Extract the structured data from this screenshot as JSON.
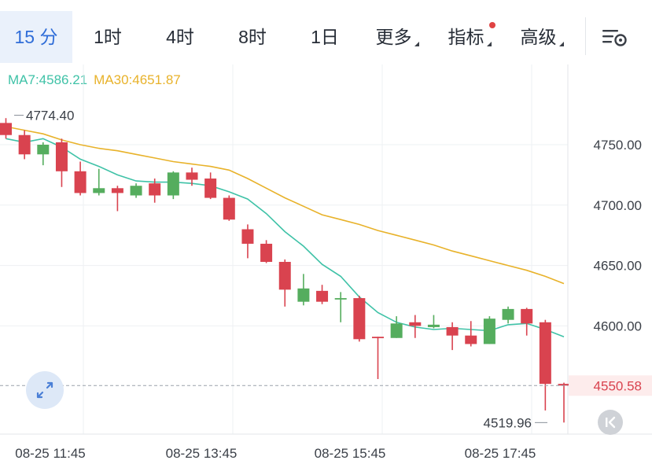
{
  "tabs": [
    {
      "label": "15 分",
      "active": true
    },
    {
      "label": "1时",
      "active": false
    },
    {
      "label": "4时",
      "active": false
    },
    {
      "label": "8时",
      "active": false
    },
    {
      "label": "1日",
      "active": false
    },
    {
      "label": "更多",
      "active": false,
      "dropdown": true
    },
    {
      "label": "指标",
      "active": false,
      "dropdown": true,
      "dot": true
    },
    {
      "label": "高级",
      "active": false,
      "dropdown": true
    }
  ],
  "legend": {
    "ma7": "MA7:4586.21",
    "ma30": "MA30:4651.87"
  },
  "colors": {
    "up": "#55ad5e",
    "down": "#d9434f",
    "ma7": "#3fc2a7",
    "ma30": "#e8b22a",
    "grid": "#eef0f3",
    "price_tag_bg": "#fdecec",
    "price_tag_text": "#d9434f"
  },
  "icons": {
    "settings": "chart-settings-icon",
    "expand": "expand-arrows-icon",
    "back": "skip-back-icon"
  },
  "chart_data": {
    "type": "candlestick",
    "x_ticks": [
      "08-25 11:45",
      "08-25 13:45",
      "08-25 15:45",
      "08-25 17:45"
    ],
    "y_ticks": [
      "4750.00",
      "4700.00",
      "4650.00",
      "4600.00"
    ],
    "ylim": [
      4510,
      4790
    ],
    "high_label": "4774.40",
    "low_label": "4519.96",
    "last_price": "4550.58",
    "last_price_value": 4550.58,
    "grid": true,
    "candles": [
      {
        "o": 4768,
        "h": 4772,
        "l": 4755,
        "c": 4758
      },
      {
        "o": 4758,
        "h": 4762,
        "l": 4738,
        "c": 4742
      },
      {
        "o": 4742,
        "h": 4752,
        "l": 4733,
        "c": 4750
      },
      {
        "o": 4752,
        "h": 4755,
        "l": 4715,
        "c": 4728
      },
      {
        "o": 4728,
        "h": 4736,
        "l": 4708,
        "c": 4710
      },
      {
        "o": 4710,
        "h": 4730,
        "l": 4708,
        "c": 4714
      },
      {
        "o": 4714,
        "h": 4716,
        "l": 4695,
        "c": 4710
      },
      {
        "o": 4708,
        "h": 4718,
        "l": 4706,
        "c": 4716
      },
      {
        "o": 4718,
        "h": 4722,
        "l": 4702,
        "c": 4708
      },
      {
        "o": 4708,
        "h": 4728,
        "l": 4705,
        "c": 4727
      },
      {
        "o": 4727,
        "h": 4731,
        "l": 4716,
        "c": 4721
      },
      {
        "o": 4722,
        "h": 4727,
        "l": 4705,
        "c": 4706
      },
      {
        "o": 4706,
        "h": 4708,
        "l": 4687,
        "c": 4688
      },
      {
        "o": 4680,
        "h": 4684,
        "l": 4656,
        "c": 4668
      },
      {
        "o": 4668,
        "h": 4671,
        "l": 4652,
        "c": 4653
      },
      {
        "o": 4653,
        "h": 4655,
        "l": 4616,
        "c": 4630
      },
      {
        "o": 4620,
        "h": 4643,
        "l": 4617,
        "c": 4631
      },
      {
        "o": 4629,
        "h": 4634,
        "l": 4618,
        "c": 4620
      },
      {
        "o": 4623,
        "h": 4628,
        "l": 4603,
        "c": 4623
      },
      {
        "o": 4623,
        "h": 4625,
        "l": 4587,
        "c": 4589
      },
      {
        "o": 4591,
        "h": 4591,
        "l": 4556,
        "c": 4590
      },
      {
        "o": 4590,
        "h": 4608,
        "l": 4590,
        "c": 4602
      },
      {
        "o": 4603,
        "h": 4609,
        "l": 4590,
        "c": 4600
      },
      {
        "o": 4599,
        "h": 4609,
        "l": 4598,
        "c": 4601
      },
      {
        "o": 4599,
        "h": 4603,
        "l": 4580,
        "c": 4592
      },
      {
        "o": 4592,
        "h": 4604,
        "l": 4583,
        "c": 4585
      },
      {
        "o": 4585,
        "h": 4608,
        "l": 4585,
        "c": 4606
      },
      {
        "o": 4605,
        "h": 4616,
        "l": 4602,
        "c": 4614
      },
      {
        "o": 4614,
        "h": 4615,
        "l": 4592,
        "c": 4602
      },
      {
        "o": 4603,
        "h": 4605,
        "l": 4530,
        "c": 4552
      },
      {
        "o": 4552,
        "h": 4553,
        "l": 4520,
        "c": 4550.58
      }
    ],
    "ma7": [
      4755,
      4752,
      4755,
      4748,
      4738,
      4732,
      4725,
      4720,
      4719,
      4719,
      4718,
      4716,
      4711,
      4705,
      4693,
      4678,
      4666,
      4651,
      4641,
      4624,
      4611,
      4603,
      4599,
      4597,
      4598,
      4597,
      4596,
      4601,
      4602,
      4597,
      4586.21
    ],
    "ma30": [
      4765,
      4762,
      4759,
      4754,
      4750,
      4747,
      4745,
      4742,
      4739,
      4736,
      4734,
      4732,
      4729,
      4722,
      4714,
      4706,
      4699,
      4692,
      4688,
      4684,
      4679,
      4675,
      4671,
      4667,
      4662,
      4658,
      4654,
      4650,
      4646,
      4641,
      4651.87
    ]
  }
}
